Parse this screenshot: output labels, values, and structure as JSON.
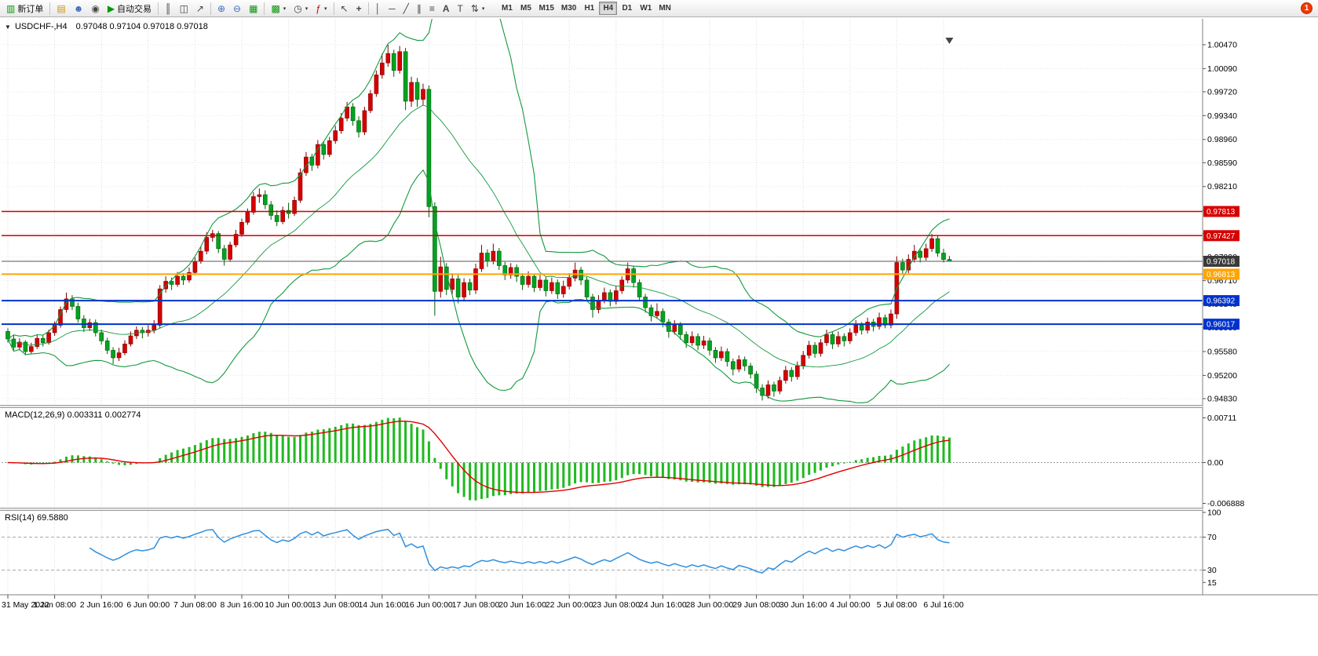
{
  "toolbar": {
    "new_order": "新订单",
    "auto_trading": "自动交易",
    "timeframes": [
      "M1",
      "M5",
      "M15",
      "M30",
      "H1",
      "H4",
      "D1",
      "W1",
      "MN"
    ],
    "active_timeframe": "H4",
    "notification_count": "1"
  },
  "icons": {
    "collapse": "▼",
    "new_order": "▥",
    "folder": "▤",
    "profile": "☻",
    "community": "◉",
    "play": "▶",
    "bars_chart": "║",
    "candles_chart": "◫",
    "line_chart": "↗",
    "zoom_in": "⊕",
    "zoom_out": "⊖",
    "tile_windows": "▦",
    "new_chart": "▩",
    "periods": "◷",
    "indicators": "ƒ",
    "cursor": "↖",
    "crosshair": "+",
    "vline": "│",
    "hline": "─",
    "trendline": "╱",
    "channel": "∥",
    "fibonacci": "≡",
    "text": "A",
    "text_label": "T",
    "arrows": "⇅",
    "dropdown": "▾"
  },
  "chart": {
    "title_symbol": "USDCHF-,H4",
    "title_ohlc": "0.97048 0.97104 0.97018 0.97018",
    "price_ticks": [
      "1.00470",
      "1.00090",
      "0.99720",
      "0.99340",
      "0.98960",
      "0.98590",
      "0.98210",
      "0.97830",
      "0.97460",
      "0.97090",
      "0.96710",
      "0.96340",
      "0.95960",
      "0.95580",
      "0.95200",
      "0.94830"
    ],
    "hlines": [
      {
        "value": 0.97813,
        "label": "0.97813",
        "color": "#d60000",
        "width": 1.5
      },
      {
        "value": 0.97427,
        "label": "0.97427",
        "color": "#d60000",
        "width": 1.5
      },
      {
        "value": 0.96813,
        "label": "0.96813",
        "color": "#ffa500",
        "width": 2
      },
      {
        "value": 0.96392,
        "label": "0.96392",
        "color": "#0033cc",
        "width": 2
      },
      {
        "value": 0.96017,
        "label": "0.96017",
        "color": "#0033cc",
        "width": 2
      }
    ],
    "current_price": {
      "value": 0.97018,
      "label": "0.97018"
    },
    "time_labels": [
      "31 May 2022",
      "1 Jun 08:00",
      "2 Jun 16:00",
      "6 Jun 00:00",
      "7 Jun 08:00",
      "8 Jun 16:00",
      "10 Jun 00:00",
      "13 Jun 08:00",
      "14 Jun 16:00",
      "16 Jun 00:00",
      "17 Jun 08:00",
      "20 Jun 16:00",
      "22 Jun 00:00",
      "23 Jun 08:00",
      "24 Jun 16:00",
      "28 Jun 00:00",
      "29 Jun 08:00",
      "30 Jun 16:00",
      "4 Jul 00:00",
      "5 Jul 08:00",
      "6 Jul 16:00"
    ]
  },
  "macd": {
    "label": "MACD(12,26,9) 0.003311 0.002774",
    "axis_max": "0.00711",
    "axis_zero": "0.00",
    "axis_min": "-0.006888"
  },
  "rsi": {
    "label": "RSI(14) 69.5880",
    "axis": [
      "100",
      "70",
      "30",
      "15"
    ],
    "levels": [
      70,
      30
    ]
  },
  "chart_data": {
    "type": "candlestick",
    "symbol": "USDCHF",
    "timeframe": "H4",
    "bull_color": "#d40000",
    "bear_color": "#00a321",
    "y_axis_range": [
      0.9483,
      1.0047
    ],
    "x_labels": [
      "31 May 2022",
      "1 Jun 08:00",
      "2 Jun 16:00",
      "6 Jun 00:00",
      "7 Jun 08:00",
      "8 Jun 16:00",
      "10 Jun 00:00",
      "13 Jun 08:00",
      "14 Jun 16:00",
      "16 Jun 00:00",
      "17 Jun 08:00",
      "20 Jun 16:00",
      "22 Jun 00:00",
      "23 Jun 08:00",
      "24 Jun 16:00",
      "28 Jun 00:00",
      "29 Jun 08:00",
      "30 Jun 16:00",
      "4 Jul 00:00",
      "5 Jul 08:00",
      "6 Jul 16:00"
    ],
    "horizontal_levels": [
      0.97813,
      0.97427,
      0.96813,
      0.96392,
      0.96017
    ],
    "last_price": 0.97018,
    "overlays": {
      "bollinger": {
        "period": 20,
        "deviation": 2,
        "color": "#12993e"
      }
    },
    "indicators": [
      {
        "name": "MACD",
        "params": [
          12,
          26,
          9
        ],
        "current_values": [
          0.003311,
          0.002774
        ]
      },
      {
        "name": "RSI",
        "params": [
          14
        ],
        "current_value": 69.588
      }
    ],
    "candles": [
      [
        0.959,
        0.9595,
        0.9572,
        0.9578
      ],
      [
        0.9578,
        0.9584,
        0.956,
        0.9565
      ],
      [
        0.9565,
        0.9579,
        0.956,
        0.9573
      ],
      [
        0.9573,
        0.9576,
        0.9552,
        0.9558
      ],
      [
        0.9558,
        0.9572,
        0.9554,
        0.9566
      ],
      [
        0.9566,
        0.9585,
        0.9562,
        0.9579
      ],
      [
        0.9579,
        0.9584,
        0.9566,
        0.9572
      ],
      [
        0.9572,
        0.9593,
        0.9569,
        0.9588
      ],
      [
        0.9588,
        0.9606,
        0.9583,
        0.96
      ],
      [
        0.96,
        0.963,
        0.9596,
        0.9625
      ],
      [
        0.9625,
        0.9652,
        0.962,
        0.9642
      ],
      [
        0.9642,
        0.9648,
        0.9624,
        0.963
      ],
      [
        0.963,
        0.9636,
        0.9604,
        0.961
      ],
      [
        0.961,
        0.9616,
        0.9589,
        0.9596
      ],
      [
        0.9596,
        0.961,
        0.9591,
        0.9604
      ],
      [
        0.9604,
        0.9609,
        0.9582,
        0.9588
      ],
      [
        0.9588,
        0.9593,
        0.9569,
        0.9575
      ],
      [
        0.9575,
        0.958,
        0.9554,
        0.956
      ],
      [
        0.956,
        0.9565,
        0.9538,
        0.9548
      ],
      [
        0.9548,
        0.9564,
        0.9543,
        0.9556
      ],
      [
        0.9556,
        0.9576,
        0.9552,
        0.957
      ],
      [
        0.957,
        0.959,
        0.9566,
        0.9583
      ],
      [
        0.9583,
        0.9598,
        0.9578,
        0.9592
      ],
      [
        0.9592,
        0.9597,
        0.9579,
        0.9588
      ],
      [
        0.9588,
        0.96,
        0.9582,
        0.9592
      ],
      [
        0.9592,
        0.9608,
        0.9587,
        0.96
      ],
      [
        0.96,
        0.9664,
        0.9595,
        0.9658
      ],
      [
        0.9658,
        0.9678,
        0.9652,
        0.967
      ],
      [
        0.967,
        0.9676,
        0.9656,
        0.9665
      ],
      [
        0.9665,
        0.9685,
        0.9661,
        0.9678
      ],
      [
        0.9678,
        0.9683,
        0.9664,
        0.9672
      ],
      [
        0.9672,
        0.9692,
        0.9668,
        0.9684
      ],
      [
        0.9684,
        0.9708,
        0.968,
        0.9702
      ],
      [
        0.9702,
        0.9725,
        0.9698,
        0.9718
      ],
      [
        0.9718,
        0.9748,
        0.9713,
        0.974
      ],
      [
        0.974,
        0.9752,
        0.9733,
        0.9746
      ],
      [
        0.9746,
        0.975,
        0.9715,
        0.9722
      ],
      [
        0.9722,
        0.9728,
        0.9695,
        0.9705
      ],
      [
        0.9705,
        0.9733,
        0.9701,
        0.9728
      ],
      [
        0.9728,
        0.9752,
        0.9724,
        0.9745
      ],
      [
        0.9745,
        0.977,
        0.9741,
        0.9764
      ],
      [
        0.9764,
        0.9786,
        0.976,
        0.978
      ],
      [
        0.978,
        0.9812,
        0.9776,
        0.9805
      ],
      [
        0.9805,
        0.9818,
        0.9795,
        0.9808
      ],
      [
        0.9808,
        0.9815,
        0.9785,
        0.9792
      ],
      [
        0.9792,
        0.9798,
        0.9768,
        0.9775
      ],
      [
        0.9775,
        0.9783,
        0.9758,
        0.9765
      ],
      [
        0.9765,
        0.9789,
        0.9761,
        0.9783
      ],
      [
        0.9783,
        0.9795,
        0.977,
        0.9778
      ],
      [
        0.9778,
        0.9805,
        0.9774,
        0.9799
      ],
      [
        0.9799,
        0.985,
        0.9795,
        0.9843
      ],
      [
        0.9843,
        0.9876,
        0.9838,
        0.9868
      ],
      [
        0.9868,
        0.9873,
        0.9846,
        0.9855
      ],
      [
        0.9855,
        0.9895,
        0.985,
        0.9888
      ],
      [
        0.9888,
        0.9893,
        0.9864,
        0.9872
      ],
      [
        0.9872,
        0.99,
        0.9868,
        0.9894
      ],
      [
        0.9894,
        0.9918,
        0.9889,
        0.991
      ],
      [
        0.991,
        0.9938,
        0.9905,
        0.993
      ],
      [
        0.993,
        0.9956,
        0.9925,
        0.9948
      ],
      [
        0.9948,
        0.9954,
        0.9918,
        0.9926
      ],
      [
        0.9926,
        0.9933,
        0.9899,
        0.9908
      ],
      [
        0.9908,
        0.9948,
        0.9903,
        0.9942
      ],
      [
        0.9942,
        0.9975,
        0.9938,
        0.9969
      ],
      [
        0.9969,
        1.0006,
        0.9964,
        0.9999
      ],
      [
        0.9999,
        1.0033,
        0.9993,
        1.0018
      ],
      [
        1.0018,
        1.0047,
        1.0012,
        1.0033
      ],
      [
        1.0033,
        1.0039,
        0.9996,
        1.0006
      ],
      [
        1.0006,
        1.0045,
        1.0001,
        1.0036
      ],
      [
        1.0036,
        1.0042,
        0.9943,
        0.9957
      ],
      [
        0.9957,
        0.9996,
        0.9948,
        0.9987
      ],
      [
        0.9987,
        0.9994,
        0.9948,
        0.996
      ],
      [
        0.996,
        0.9985,
        0.995,
        0.9976
      ],
      [
        0.9976,
        0.9982,
        0.9772,
        0.9789
      ],
      [
        0.9789,
        0.9796,
        0.9615,
        0.9654
      ],
      [
        0.9654,
        0.9709,
        0.9644,
        0.9693
      ],
      [
        0.9693,
        0.9699,
        0.9648,
        0.9657
      ],
      [
        0.9657,
        0.9683,
        0.965,
        0.9674
      ],
      [
        0.9674,
        0.968,
        0.9635,
        0.9645
      ],
      [
        0.9645,
        0.9675,
        0.9638,
        0.9668
      ],
      [
        0.9668,
        0.9674,
        0.9648,
        0.9656
      ],
      [
        0.9656,
        0.9698,
        0.965,
        0.969
      ],
      [
        0.969,
        0.9728,
        0.9685,
        0.9715
      ],
      [
        0.9715,
        0.9721,
        0.9693,
        0.9702
      ],
      [
        0.9702,
        0.973,
        0.9697,
        0.9718
      ],
      [
        0.9718,
        0.9723,
        0.9688,
        0.9695
      ],
      [
        0.9695,
        0.9701,
        0.9672,
        0.968
      ],
      [
        0.968,
        0.9699,
        0.9674,
        0.9692
      ],
      [
        0.9692,
        0.9697,
        0.9669,
        0.9678
      ],
      [
        0.9678,
        0.9683,
        0.9656,
        0.9665
      ],
      [
        0.9665,
        0.9686,
        0.966,
        0.9678
      ],
      [
        0.9678,
        0.9682,
        0.9653,
        0.966
      ],
      [
        0.966,
        0.968,
        0.9655,
        0.9672
      ],
      [
        0.9672,
        0.9677,
        0.9646,
        0.9655
      ],
      [
        0.9655,
        0.9676,
        0.965,
        0.9668
      ],
      [
        0.9668,
        0.9673,
        0.9642,
        0.965
      ],
      [
        0.965,
        0.9671,
        0.9644,
        0.9662
      ],
      [
        0.9662,
        0.9683,
        0.9657,
        0.9675
      ],
      [
        0.9675,
        0.97,
        0.967,
        0.9688
      ],
      [
        0.9688,
        0.9693,
        0.9664,
        0.9672
      ],
      [
        0.9672,
        0.9677,
        0.9638,
        0.9645
      ],
      [
        0.9645,
        0.965,
        0.9612,
        0.9625
      ],
      [
        0.9625,
        0.9648,
        0.9619,
        0.964
      ],
      [
        0.964,
        0.966,
        0.9635,
        0.9652
      ],
      [
        0.9652,
        0.9657,
        0.963,
        0.9638
      ],
      [
        0.9638,
        0.9662,
        0.9633,
        0.9655
      ],
      [
        0.9655,
        0.9678,
        0.965,
        0.9672
      ],
      [
        0.9672,
        0.97,
        0.9667,
        0.969
      ],
      [
        0.969,
        0.9695,
        0.966,
        0.9668
      ],
      [
        0.9668,
        0.9673,
        0.9638,
        0.9645
      ],
      [
        0.9645,
        0.965,
        0.962,
        0.9628
      ],
      [
        0.9628,
        0.9633,
        0.9606,
        0.9615
      ],
      [
        0.9615,
        0.9635,
        0.961,
        0.9622
      ],
      [
        0.9622,
        0.9627,
        0.9597,
        0.9605
      ],
      [
        0.9605,
        0.961,
        0.958,
        0.959
      ],
      [
        0.959,
        0.9608,
        0.9585,
        0.96
      ],
      [
        0.96,
        0.9605,
        0.9577,
        0.9585
      ],
      [
        0.9585,
        0.959,
        0.9564,
        0.9572
      ],
      [
        0.9572,
        0.959,
        0.9567,
        0.9582
      ],
      [
        0.9582,
        0.9587,
        0.956,
        0.9568
      ],
      [
        0.9568,
        0.9583,
        0.9562,
        0.9575
      ],
      [
        0.9575,
        0.958,
        0.9552,
        0.956
      ],
      [
        0.956,
        0.9565,
        0.954,
        0.9548
      ],
      [
        0.9548,
        0.9566,
        0.9543,
        0.9558
      ],
      [
        0.9558,
        0.9563,
        0.9534,
        0.9542
      ],
      [
        0.9542,
        0.9547,
        0.952,
        0.953
      ],
      [
        0.953,
        0.9552,
        0.9525,
        0.9545
      ],
      [
        0.9545,
        0.955,
        0.9527,
        0.9535
      ],
      [
        0.9535,
        0.954,
        0.9515,
        0.9522
      ],
      [
        0.9522,
        0.9527,
        0.9492,
        0.95
      ],
      [
        0.95,
        0.9506,
        0.948,
        0.9488
      ],
      [
        0.9488,
        0.9512,
        0.9483,
        0.9505
      ],
      [
        0.9505,
        0.951,
        0.9486,
        0.9495
      ],
      [
        0.9495,
        0.9518,
        0.949,
        0.9512
      ],
      [
        0.9512,
        0.9535,
        0.9507,
        0.9528
      ],
      [
        0.9528,
        0.9533,
        0.951,
        0.9518
      ],
      [
        0.9518,
        0.9542,
        0.9513,
        0.9535
      ],
      [
        0.9535,
        0.9559,
        0.953,
        0.9552
      ],
      [
        0.9552,
        0.9575,
        0.9547,
        0.9568
      ],
      [
        0.9568,
        0.9573,
        0.9548,
        0.9555
      ],
      [
        0.9555,
        0.9578,
        0.955,
        0.9572
      ],
      [
        0.9572,
        0.9593,
        0.9567,
        0.9585
      ],
      [
        0.9585,
        0.959,
        0.9562,
        0.957
      ],
      [
        0.957,
        0.959,
        0.9565,
        0.9582
      ],
      [
        0.9582,
        0.9587,
        0.9566,
        0.9575
      ],
      [
        0.9575,
        0.9595,
        0.957,
        0.9588
      ],
      [
        0.9588,
        0.9608,
        0.9583,
        0.96
      ],
      [
        0.96,
        0.9605,
        0.9585,
        0.9592
      ],
      [
        0.9592,
        0.9612,
        0.9587,
        0.9605
      ],
      [
        0.9605,
        0.961,
        0.959,
        0.9598
      ],
      [
        0.9598,
        0.962,
        0.9593,
        0.9612
      ],
      [
        0.9612,
        0.9617,
        0.9595,
        0.96
      ],
      [
        0.96,
        0.9625,
        0.9595,
        0.9618
      ],
      [
        0.9618,
        0.971,
        0.961,
        0.97
      ],
      [
        0.97,
        0.9706,
        0.968,
        0.9688
      ],
      [
        0.9688,
        0.9713,
        0.9683,
        0.9705
      ],
      [
        0.9705,
        0.9728,
        0.97,
        0.9718
      ],
      [
        0.9718,
        0.9723,
        0.97,
        0.9708
      ],
      [
        0.9708,
        0.973,
        0.9703,
        0.9722
      ],
      [
        0.9722,
        0.97455,
        0.9717,
        0.9738
      ],
      [
        0.9738,
        0.9743,
        0.9709,
        0.9715
      ],
      [
        0.9715,
        0.9722,
        0.97,
        0.97048
      ],
      [
        0.97048,
        0.97104,
        0.97018,
        0.97018
      ]
    ]
  }
}
